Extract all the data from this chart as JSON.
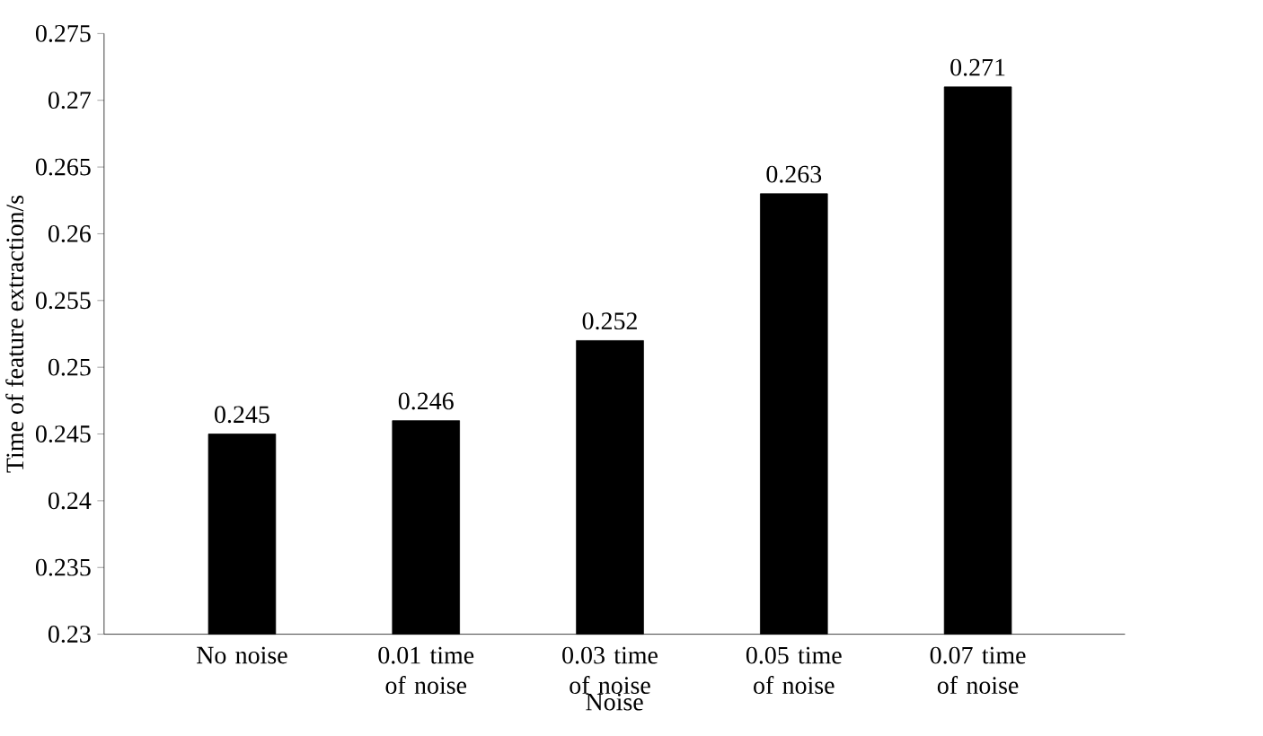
{
  "chart_data": {
    "type": "bar",
    "xlabel": "Noise",
    "ylabel": "Time of feature extraction/s",
    "categories": [
      "No noise",
      "0.01 time of noise",
      "0.03 time of noise",
      "0.05 time of noise",
      "0.07 time of noise"
    ],
    "values": [
      0.245,
      0.246,
      0.252,
      0.263,
      0.271
    ],
    "color": "#000000",
    "ylim": [
      0.23,
      0.275
    ],
    "yticks": [
      0.23,
      0.235,
      0.24,
      0.245,
      0.25,
      0.255,
      0.26,
      0.265,
      0.27,
      0.275
    ],
    "data_labels": true
  }
}
